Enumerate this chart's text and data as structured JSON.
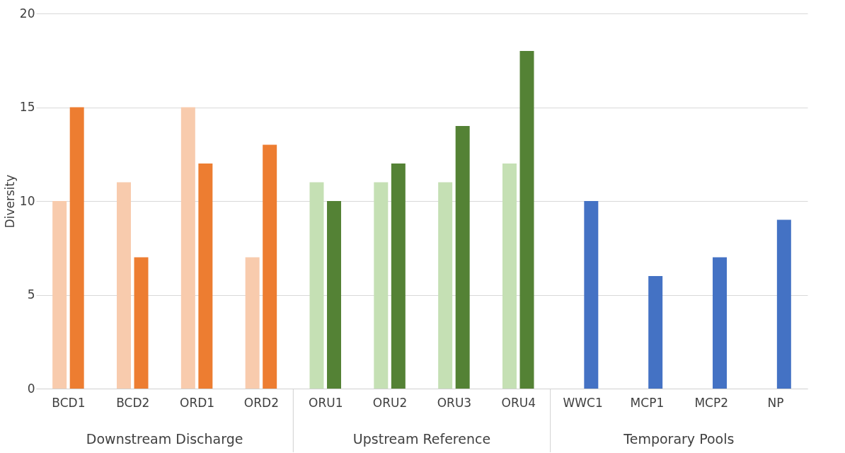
{
  "chart_data": {
    "type": "bar",
    "ylabel": "Diversity",
    "categories": [
      "BCD1",
      "BCD2",
      "ORD1",
      "ORD2",
      "ORU1",
      "ORU2",
      "ORU3",
      "ORU4",
      "WWC1",
      "MCP1",
      "MCP2",
      "NP"
    ],
    "series": [
      {
        "colors": [
          "#f8cbad",
          "#f8cbad",
          "#f8cbad",
          "#f8cbad",
          "#c5e0b4",
          "#c5e0b4",
          "#c5e0b4",
          "#c5e0b4",
          null,
          null,
          null,
          null
        ],
        "values": [
          10,
          11,
          15,
          7,
          11,
          11,
          11,
          12,
          null,
          null,
          null,
          null
        ]
      },
      {
        "colors": [
          "#ed7d31",
          "#ed7d31",
          "#ed7d31",
          "#ed7d31",
          "#548235",
          "#548235",
          "#548235",
          "#548235",
          "#4472c4",
          "#4472c4",
          "#4472c4",
          "#4472c4"
        ],
        "values": [
          15,
          7,
          12,
          13,
          10,
          12,
          14,
          18,
          10,
          6,
          7,
          9
        ]
      }
    ],
    "annotations": [
      "Downstream Discharge",
      "Upstream Reference",
      "Temporary Pools"
    ],
    "ylim": [
      0,
      20
    ],
    "yticks": [
      0,
      5,
      10,
      15,
      20
    ],
    "grid": "y"
  }
}
